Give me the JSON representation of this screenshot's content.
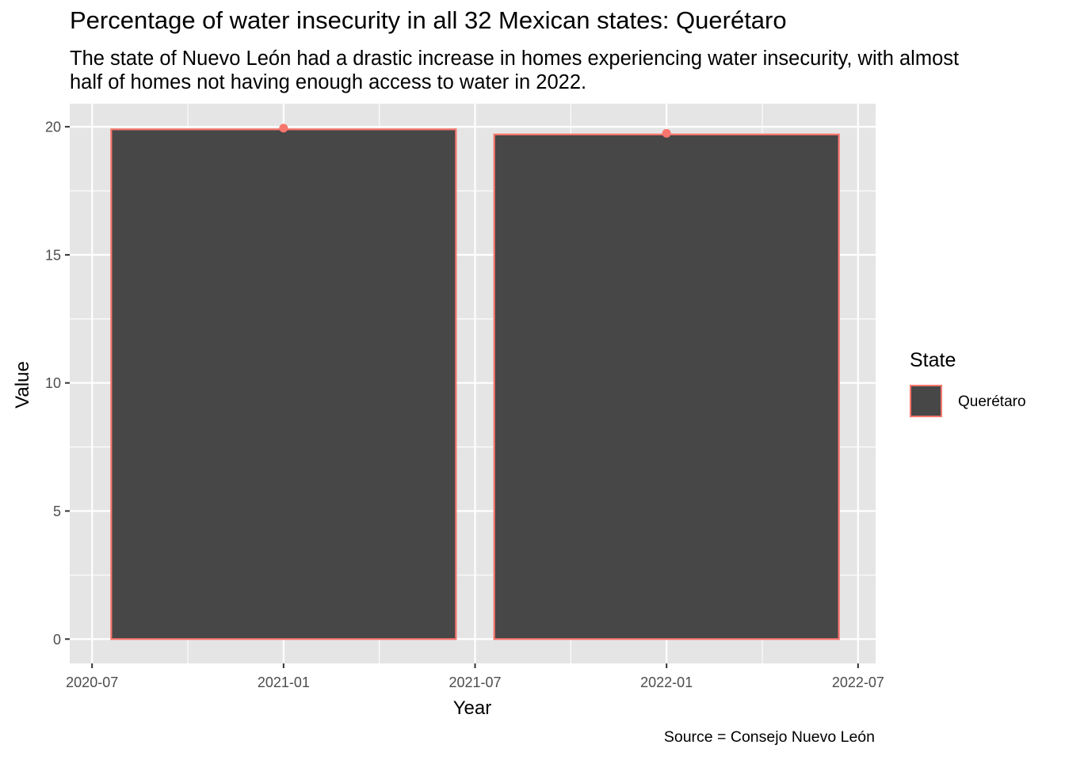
{
  "chart_data": {
    "type": "bar",
    "title": "Percentage of water insecurity in all 32 Mexican states: Querétaro",
    "subtitle": "The state of Nuevo León had a drastic increase in homes experiencing water insecurity, with almost half of homes not having enough access to water in 2022.",
    "xlabel": "Year",
    "ylabel": "Value",
    "caption": "Source = Consejo Nuevo León",
    "categories": [
      "2021-01",
      "2022-01"
    ],
    "series": [
      {
        "name": "Querétaro",
        "values": [
          19.9,
          19.7
        ]
      }
    ],
    "ylim": [
      -0.95,
      20.9
    ],
    "y_ticks": [
      0,
      5,
      10,
      15,
      20
    ],
    "x_ticks": [
      "2020-07",
      "2021-01",
      "2021-07",
      "2022-01",
      "2022-07"
    ],
    "legend": {
      "title": "State",
      "position": "right"
    },
    "grid": true,
    "colors": {
      "fill": "#474747",
      "outline": "#f8766d",
      "panel": "#e5e5e5",
      "grid": "#ffffff"
    }
  }
}
